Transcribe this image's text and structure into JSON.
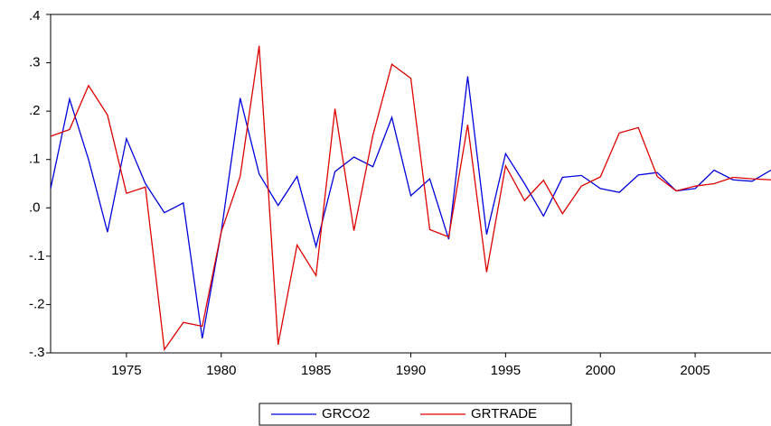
{
  "chart_data": {
    "type": "line",
    "x": [
      1971,
      1972,
      1973,
      1974,
      1975,
      1976,
      1977,
      1978,
      1979,
      1980,
      1981,
      1982,
      1983,
      1984,
      1985,
      1986,
      1987,
      1988,
      1989,
      1990,
      1991,
      1992,
      1993,
      1994,
      1995,
      1996,
      1997,
      1998,
      1999,
      2000,
      2001,
      2002,
      2003,
      2004,
      2005,
      2006,
      2007,
      2008,
      2009
    ],
    "series": [
      {
        "name": "GRCO2",
        "color": "#0000dd",
        "values": [
          0.04,
          0.225,
          0.1,
          -0.05,
          0.143,
          0.05,
          -0.01,
          0.01,
          -0.27,
          -0.05,
          0.227,
          0.07,
          0.005,
          0.065,
          -0.08,
          0.075,
          0.105,
          0.085,
          0.187,
          0.025,
          0.06,
          -0.065,
          0.272,
          -0.055,
          0.112,
          0.05,
          -0.017,
          0.063,
          0.067,
          0.04,
          0.032,
          0.068,
          0.073,
          0.035,
          0.04,
          0.078,
          0.058,
          0.055,
          0.078
        ]
      },
      {
        "name": "GRTRADE",
        "color": "#dd0000",
        "values": [
          0.148,
          0.162,
          0.253,
          0.192,
          0.03,
          0.043,
          -0.293,
          -0.237,
          -0.245,
          -0.05,
          0.065,
          0.335,
          -0.283,
          -0.077,
          -0.14,
          0.205,
          -0.047,
          0.15,
          0.297,
          0.268,
          -0.045,
          -0.06,
          0.172,
          -0.133,
          0.087,
          0.015,
          0.057,
          -0.012,
          0.045,
          0.064,
          0.155,
          0.166,
          0.065,
          0.035,
          0.045,
          0.05,
          0.063,
          0.06,
          0.058
        ]
      }
    ],
    "xlim": [
      1971,
      2009
    ],
    "xticks": [
      1975,
      1980,
      1985,
      1990,
      1995,
      2000,
      2005
    ],
    "ylim": [
      -0.3,
      0.4
    ],
    "yticks": [
      {
        "value": 0.4,
        "label": ".4"
      },
      {
        "value": 0.3,
        "label": ".3"
      },
      {
        "value": 0.2,
        "label": ".2"
      },
      {
        "value": 0.1,
        "label": ".1"
      },
      {
        "value": 0,
        "label": ".0"
      },
      {
        "value": -0.1,
        "label": "-.1"
      },
      {
        "value": -0.2,
        "label": "-.2"
      },
      {
        "value": -0.3,
        "label": "-.3"
      }
    ],
    "legend": "bottom"
  }
}
